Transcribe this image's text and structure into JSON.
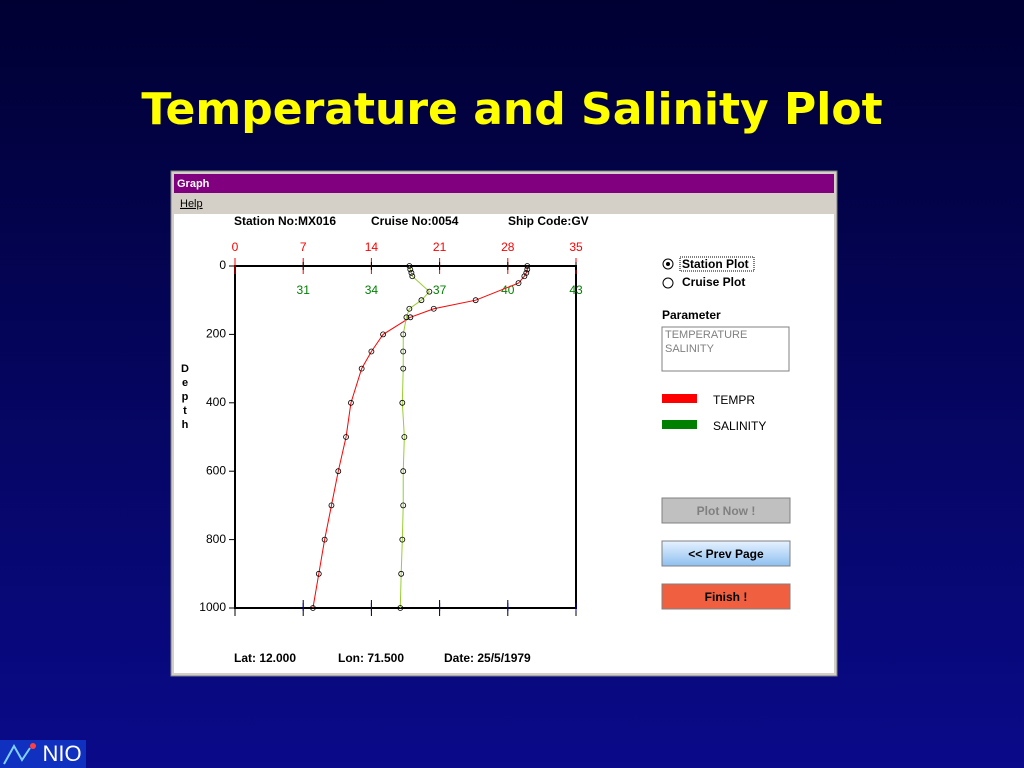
{
  "slide_title": "Temperature and Salinity Plot",
  "window": {
    "title": "Graph",
    "menu": [
      "Help"
    ],
    "header": [
      "Station No:MX016",
      "Cruise No:0054",
      "Ship Code:GV"
    ],
    "footer": [
      "Lat: 12.000",
      "Lon: 71.500",
      "Date: 25/5/1979"
    ],
    "radio": [
      "Station Plot",
      "Cruise Plot"
    ],
    "parameter_label": "Parameter",
    "parameter_list": [
      "TEMPERATURE",
      "SALINITY"
    ],
    "buttons": [
      "Plot Now !",
      "<< Prev Page",
      "Finish !"
    ]
  },
  "chart_data": {
    "type": "line",
    "y_label": "Depth",
    "ylim": [
      0,
      1000
    ],
    "y_inverted": true,
    "yticks": [
      0,
      200,
      400,
      600,
      800,
      1000
    ],
    "xlim": [
      0,
      35
    ],
    "xticks": [
      0,
      7,
      14,
      21,
      28,
      35
    ],
    "x2lim": [
      28,
      43
    ],
    "x2ticks": [
      31,
      34,
      37,
      40,
      43
    ],
    "series": [
      {
        "name": "TEMPR",
        "color": "#ff0000",
        "line_color": "#ff0000",
        "axis": "x",
        "depths": [
          0,
          10,
          20,
          30,
          50,
          100,
          125,
          150,
          200,
          250,
          300,
          400,
          500,
          600,
          700,
          800,
          900,
          1000
        ],
        "values": [
          30.0,
          30.0,
          29.9,
          29.7,
          29.1,
          24.7,
          20.4,
          18.0,
          15.2,
          14.0,
          13.0,
          11.9,
          11.4,
          10.6,
          9.9,
          9.2,
          8.6,
          8.0
        ]
      },
      {
        "name": "SALINITY",
        "color": "#008000",
        "line_color": "#9acd32",
        "axis": "x2",
        "depths": [
          0,
          10,
          20,
          30,
          75,
          100,
          125,
          150,
          200,
          250,
          300,
          400,
          500,
          600,
          700,
          800,
          900,
          1000
        ],
        "values": [
          35.67,
          35.71,
          35.76,
          35.8,
          36.55,
          36.2,
          35.67,
          35.54,
          35.4,
          35.4,
          35.4,
          35.36,
          35.45,
          35.4,
          35.4,
          35.36,
          35.31,
          35.27
        ]
      }
    ]
  },
  "logo": "NIO"
}
